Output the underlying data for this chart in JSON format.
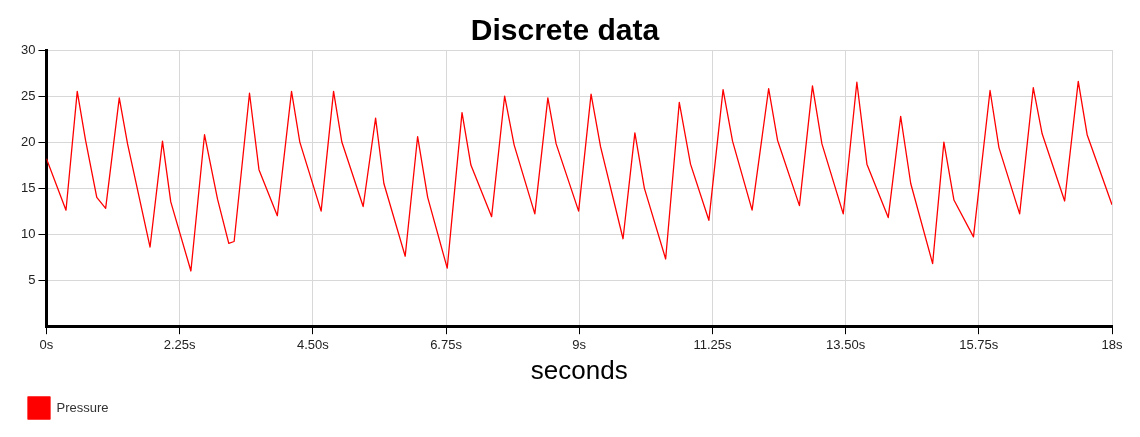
{
  "chart_data": {
    "type": "line",
    "title": "Discrete data",
    "xlabel": "seconds",
    "xlim": [
      0,
      18
    ],
    "xticks": [
      {
        "value": 0,
        "label": "0s"
      },
      {
        "value": 2.25,
        "label": "2.25s"
      },
      {
        "value": 4.5,
        "label": "4.50s"
      },
      {
        "value": 6.75,
        "label": "6.75s"
      },
      {
        "value": 9,
        "label": "9s"
      },
      {
        "value": 11.25,
        "label": "11.25s"
      },
      {
        "value": 13.5,
        "label": "13.50s"
      },
      {
        "value": 15.75,
        "label": "15.75s"
      },
      {
        "value": 18,
        "label": "18s"
      }
    ],
    "ylim": [
      0,
      30
    ],
    "yticks": [
      5,
      10,
      15,
      20,
      25,
      30
    ],
    "grid": true,
    "legend": "bottom left",
    "marker": "none",
    "line_style": "solid",
    "series": [
      {
        "name": "Pressure",
        "color": "#ff0000",
        "x": [
          0,
          0.33,
          0.52,
          0.66,
          0.85,
          1.0,
          1.23,
          1.37,
          1.75,
          1.96,
          2.1,
          2.44,
          2.67,
          2.89,
          3.08,
          3.17,
          3.43,
          3.59,
          3.9,
          4.14,
          4.28,
          4.64,
          4.85,
          4.99,
          5.35,
          5.56,
          5.7,
          6.06,
          6.27,
          6.44,
          6.77,
          7.02,
          7.17,
          7.52,
          7.74,
          7.9,
          8.25,
          8.47,
          8.61,
          8.99,
          9.2,
          9.36,
          9.74,
          9.94,
          10.1,
          10.46,
          10.69,
          10.88,
          11.19,
          11.43,
          11.59,
          11.92,
          12.2,
          12.35,
          12.72,
          12.94,
          13.1,
          13.46,
          13.69,
          13.86,
          14.22,
          14.43,
          14.6,
          14.97,
          15.16,
          15.33,
          15.66,
          15.94,
          16.09,
          16.44,
          16.67,
          16.82,
          17.2,
          17.43,
          17.58,
          18
        ],
        "values": [
          18.2,
          12.6,
          25.5,
          20.2,
          14,
          12.8,
          24.8,
          19.8,
          8.6,
          20.1,
          13.5,
          6.0,
          20.8,
          13.8,
          9.0,
          9.2,
          25.3,
          17,
          12,
          25.5,
          20,
          12.5,
          25.5,
          20,
          13,
          22.6,
          15.5,
          7.6,
          20.6,
          14,
          6.3,
          23.2,
          17.5,
          11.9,
          25,
          19.7,
          12.2,
          24.8,
          19.8,
          12.5,
          25.2,
          19.5,
          9.5,
          21,
          15,
          7.3,
          24.3,
          17.6,
          11.5,
          25.7,
          20.1,
          12.6,
          25.8,
          20.2,
          13.1,
          26.1,
          19.8,
          12.2,
          26.5,
          17.6,
          11.8,
          22.8,
          15.5,
          6.8,
          20,
          13.7,
          9.7,
          25.6,
          19.4,
          12.2,
          25.9,
          20.9,
          13.6,
          26.6,
          20.8,
          13.2
        ]
      }
    ]
  }
}
